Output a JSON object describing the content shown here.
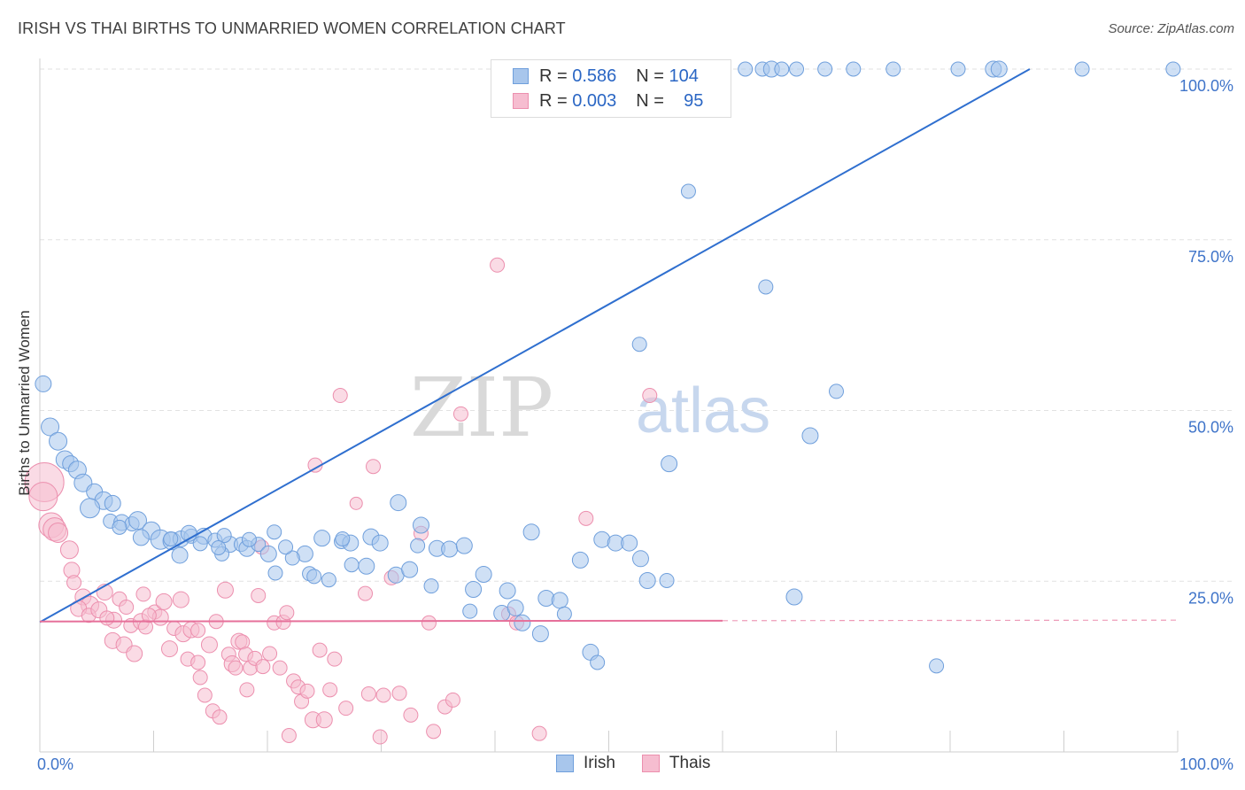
{
  "title": "IRISH VS THAI BIRTHS TO UNMARRIED WOMEN CORRELATION CHART",
  "source": "Source: ZipAtlas.com",
  "watermark": {
    "part1": "ZIP",
    "part2": "atlas"
  },
  "legend": {
    "rows": [
      {
        "r_label": "R =",
        "r_value": "0.586",
        "n_label": "N =",
        "n_value": "104"
      },
      {
        "r_label": "R =",
        "r_value": "0.003",
        "n_label": "N =",
        "n_value": "95"
      }
    ]
  },
  "bottom_legend": {
    "irish": "Irish",
    "thais": "Thais"
  },
  "colors": {
    "irish_fill": "#a8c6ec",
    "irish_stroke": "#6f9fdc",
    "irish_line": "#2f6fcf",
    "thai_fill": "#f6bdd0",
    "thai_stroke": "#ec8fae",
    "thai_line": "#e6709a",
    "axis_label": "#3f74c9",
    "grid": "#e2e2e2"
  },
  "chart_data": {
    "type": "scatter",
    "title": "IRISH VS THAI BIRTHS TO UNMARRIED WOMEN CORRELATION CHART",
    "xlabel": "",
    "ylabel": "Births to Unmarried Women",
    "xlim": [
      0,
      100
    ],
    "ylim": [
      0,
      100
    ],
    "x_tick_labels": [
      "0.0%",
      "100.0%"
    ],
    "y_tick_labels": [
      "100.0%",
      "75.0%",
      "50.0%",
      "25.0%"
    ],
    "y_ticks": [
      100,
      75,
      50,
      25
    ],
    "grid": true,
    "legend_position": "top-center",
    "series": [
      {
        "name": "Irish",
        "r": 0.586,
        "n": 104,
        "trend": {
          "x": [
            0,
            87
          ],
          "y": [
            19,
            100
          ]
        },
        "points": [
          [
            0.3,
            53.9,
            9
          ],
          [
            0.9,
            47.6,
            10
          ],
          [
            1.6,
            45.5,
            10
          ],
          [
            2.2,
            42.8,
            10
          ],
          [
            2.7,
            42.2,
            9
          ],
          [
            3.3,
            41.3,
            10
          ],
          [
            3.8,
            39.4,
            10
          ],
          [
            4.8,
            38.1,
            9
          ],
          [
            5.6,
            36.8,
            10
          ],
          [
            6.4,
            36.4,
            9
          ],
          [
            4.4,
            35.7,
            11
          ],
          [
            6.2,
            33.8,
            8
          ],
          [
            7.2,
            33.6,
            9
          ],
          [
            8.1,
            33.4,
            8
          ],
          [
            8.6,
            33.9,
            10
          ],
          [
            7.0,
            32.9,
            8
          ],
          [
            9.8,
            32.4,
            10
          ],
          [
            8.9,
            31.4,
            9
          ],
          [
            10.6,
            31.1,
            11
          ],
          [
            11.6,
            30.9,
            10
          ],
          [
            12.4,
            31.2,
            9
          ],
          [
            13.3,
            31.6,
            8
          ],
          [
            14.4,
            31.6,
            9
          ],
          [
            15.4,
            31.0,
            8
          ],
          [
            13.1,
            32.0,
            9
          ],
          [
            16.7,
            30.4,
            9
          ],
          [
            17.7,
            30.4,
            8
          ],
          [
            18.2,
            29.8,
            9
          ],
          [
            14.1,
            30.5,
            8
          ],
          [
            12.3,
            28.8,
            9
          ],
          [
            16.0,
            29.0,
            8
          ],
          [
            19.2,
            30.4,
            8
          ],
          [
            20.1,
            29.0,
            9
          ],
          [
            20.7,
            26.2,
            8
          ],
          [
            20.6,
            32.2,
            8
          ],
          [
            23.3,
            29.0,
            9
          ],
          [
            23.7,
            26.1,
            8
          ],
          [
            24.8,
            31.3,
            9
          ],
          [
            25.4,
            25.2,
            8
          ],
          [
            26.5,
            30.8,
            8
          ],
          [
            27.3,
            30.6,
            9
          ],
          [
            28.7,
            27.2,
            9
          ],
          [
            29.1,
            31.5,
            9
          ],
          [
            29.9,
            30.6,
            9
          ],
          [
            31.3,
            25.9,
            9
          ],
          [
            32.5,
            26.7,
            9
          ],
          [
            33.5,
            33.2,
            9
          ],
          [
            31.5,
            36.5,
            9
          ],
          [
            34.4,
            24.3,
            8
          ],
          [
            34.9,
            29.8,
            9
          ],
          [
            36.0,
            29.7,
            9
          ],
          [
            37.3,
            30.2,
            9
          ],
          [
            38.1,
            23.8,
            9
          ],
          [
            37.8,
            20.6,
            8
          ],
          [
            39.0,
            26.0,
            9
          ],
          [
            40.6,
            20.3,
            9
          ],
          [
            41.1,
            23.6,
            9
          ],
          [
            41.8,
            21.1,
            9
          ],
          [
            42.4,
            18.9,
            9
          ],
          [
            43.2,
            32.2,
            9
          ],
          [
            44.0,
            17.3,
            9
          ],
          [
            44.5,
            22.5,
            9
          ],
          [
            45.7,
            22.2,
            9
          ],
          [
            46.1,
            20.2,
            8
          ],
          [
            47.5,
            28.1,
            9
          ],
          [
            48.4,
            14.6,
            9
          ],
          [
            49.0,
            13.1,
            8
          ],
          [
            49.4,
            31.1,
            9
          ],
          [
            50.6,
            30.6,
            9
          ],
          [
            51.8,
            30.6,
            9
          ],
          [
            52.8,
            28.3,
            9
          ],
          [
            53.4,
            25.1,
            9
          ],
          [
            55.3,
            42.2,
            9
          ],
          [
            57.0,
            82.1,
            8
          ],
          [
            56.5,
            100,
            8
          ],
          [
            62.0,
            100,
            8
          ],
          [
            63.5,
            100,
            8
          ],
          [
            64.3,
            100,
            9
          ],
          [
            63.8,
            68.1,
            8
          ],
          [
            65.2,
            100,
            8
          ],
          [
            66.5,
            100,
            8
          ],
          [
            69.0,
            100,
            8
          ],
          [
            71.5,
            100,
            8
          ],
          [
            75.0,
            100,
            8
          ],
          [
            80.7,
            100,
            8
          ],
          [
            83.8,
            100,
            9
          ],
          [
            84.3,
            100,
            9
          ],
          [
            91.6,
            100,
            8
          ],
          [
            99.6,
            100,
            8
          ],
          [
            52.7,
            59.7,
            8
          ],
          [
            49.4,
            96.8,
            8
          ],
          [
            67.7,
            46.3,
            9
          ],
          [
            70.0,
            52.8,
            8
          ],
          [
            66.3,
            22.7,
            9
          ],
          [
            78.8,
            12.6,
            8
          ],
          [
            55.1,
            25.1,
            8
          ],
          [
            33.2,
            30.2,
            8
          ],
          [
            27.4,
            27.4,
            8
          ],
          [
            26.6,
            31.2,
            8
          ],
          [
            24.1,
            25.7,
            8
          ],
          [
            22.2,
            28.4,
            8
          ],
          [
            21.6,
            30.0,
            8
          ],
          [
            18.4,
            31.1,
            8
          ],
          [
            16.2,
            31.7,
            8
          ],
          [
            15.7,
            29.9,
            8
          ],
          [
            11.5,
            31.2,
            8
          ]
        ]
      },
      {
        "name": "Thais",
        "r": 0.003,
        "n": 95,
        "trend": {
          "x": [
            0,
            100
          ],
          "y": [
            19.1,
            19.3
          ]
        },
        "points": [
          [
            0.4,
            39.5,
            22
          ],
          [
            0.3,
            37.4,
            16
          ],
          [
            1.0,
            33.2,
            14
          ],
          [
            1.3,
            32.6,
            13
          ],
          [
            1.6,
            32.1,
            11
          ],
          [
            2.6,
            29.6,
            10
          ],
          [
            2.8,
            26.6,
            9
          ],
          [
            3.0,
            24.8,
            8
          ],
          [
            3.8,
            22.7,
            9
          ],
          [
            4.4,
            21.5,
            10
          ],
          [
            3.4,
            21.0,
            9
          ],
          [
            4.3,
            20.0,
            8
          ],
          [
            5.2,
            20.8,
            9
          ],
          [
            5.7,
            23.4,
            9
          ],
          [
            6.5,
            19.3,
            9
          ],
          [
            6.4,
            16.3,
            9
          ],
          [
            7.0,
            22.4,
            8
          ],
          [
            7.4,
            15.7,
            9
          ],
          [
            8.0,
            18.5,
            8
          ],
          [
            8.3,
            14.4,
            9
          ],
          [
            8.9,
            19.1,
            9
          ],
          [
            9.3,
            18.3,
            8
          ],
          [
            9.1,
            23.1,
            8
          ],
          [
            10.1,
            20.5,
            8
          ],
          [
            10.6,
            19.7,
            9
          ],
          [
            10.9,
            22.0,
            9
          ],
          [
            11.4,
            15.1,
            9
          ],
          [
            11.8,
            18.1,
            8
          ],
          [
            12.4,
            22.3,
            9
          ],
          [
            12.6,
            17.3,
            9
          ],
          [
            13.0,
            13.6,
            8
          ],
          [
            13.3,
            17.9,
            9
          ],
          [
            13.9,
            13.1,
            8
          ],
          [
            14.1,
            10.9,
            8
          ],
          [
            14.5,
            8.3,
            8
          ],
          [
            14.9,
            15.7,
            9
          ],
          [
            15.2,
            6.0,
            8
          ],
          [
            15.5,
            19.1,
            8
          ],
          [
            15.8,
            5.1,
            8
          ],
          [
            16.3,
            23.7,
            9
          ],
          [
            16.6,
            14.3,
            8
          ],
          [
            16.9,
            12.9,
            9
          ],
          [
            17.2,
            12.3,
            8
          ],
          [
            17.5,
            16.2,
            9
          ],
          [
            17.8,
            16.1,
            8
          ],
          [
            18.1,
            14.3,
            8
          ],
          [
            18.5,
            12.3,
            8
          ],
          [
            18.9,
            13.7,
            8
          ],
          [
            19.2,
            22.9,
            8
          ],
          [
            19.5,
            30.0,
            8
          ],
          [
            19.6,
            12.5,
            8
          ],
          [
            20.2,
            14.4,
            8
          ],
          [
            20.6,
            18.9,
            8
          ],
          [
            21.1,
            12.3,
            8
          ],
          [
            21.4,
            19.0,
            8
          ],
          [
            21.7,
            20.4,
            8
          ],
          [
            21.9,
            2.4,
            8
          ],
          [
            22.3,
            10.4,
            8
          ],
          [
            22.7,
            9.5,
            8
          ],
          [
            23.0,
            7.4,
            8
          ],
          [
            23.5,
            8.9,
            8
          ],
          [
            24.0,
            4.7,
            9
          ],
          [
            24.2,
            42.0,
            8
          ],
          [
            24.6,
            14.9,
            8
          ],
          [
            25.0,
            4.7,
            9
          ],
          [
            25.5,
            9.1,
            8
          ],
          [
            25.9,
            13.6,
            8
          ],
          [
            26.4,
            52.2,
            8
          ],
          [
            26.9,
            6.4,
            8
          ],
          [
            27.8,
            36.4,
            7
          ],
          [
            28.6,
            23.2,
            8
          ],
          [
            28.9,
            8.5,
            8
          ],
          [
            29.3,
            41.8,
            8
          ],
          [
            29.9,
            2.2,
            8
          ],
          [
            30.2,
            8.3,
            8
          ],
          [
            30.9,
            25.5,
            8
          ],
          [
            31.6,
            8.6,
            8
          ],
          [
            32.6,
            5.4,
            8
          ],
          [
            33.5,
            32.0,
            8
          ],
          [
            34.2,
            18.9,
            8
          ],
          [
            34.6,
            3.0,
            8
          ],
          [
            35.6,
            6.6,
            8
          ],
          [
            36.3,
            7.6,
            8
          ],
          [
            37.0,
            49.5,
            8
          ],
          [
            40.2,
            71.3,
            8
          ],
          [
            41.2,
            20.2,
            8
          ],
          [
            41.9,
            18.9,
            8
          ],
          [
            43.9,
            2.7,
            8
          ],
          [
            48.0,
            34.2,
            8
          ],
          [
            53.6,
            52.2,
            8
          ],
          [
            18.2,
            9.1,
            8
          ],
          [
            13.9,
            17.8,
            8
          ],
          [
            7.6,
            21.2,
            8
          ],
          [
            9.6,
            20.0,
            8
          ],
          [
            5.9,
            19.6,
            8
          ]
        ]
      }
    ]
  }
}
